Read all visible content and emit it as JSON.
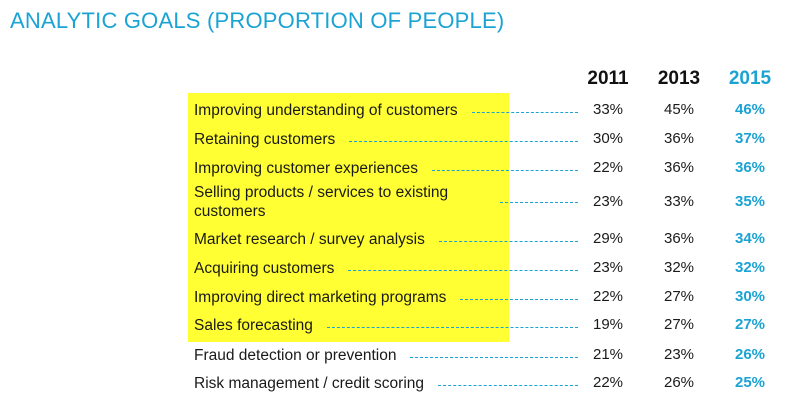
{
  "title": "ANALYTIC GOALS (PROPORTION OF PEOPLE)",
  "colors": {
    "accent": "#1ba3d3",
    "highlight": "#ffff33",
    "text": "#1a1a1a"
  },
  "chart_data": {
    "type": "table",
    "title": "ANALYTIC GOALS (PROPORTION OF PEOPLE)",
    "columns": [
      "2011",
      "2013",
      "2015"
    ],
    "highlighted_column": "2015",
    "rows": [
      {
        "label": "Improving understanding of customers",
        "values": [
          "33%",
          "45%",
          "46%"
        ],
        "highlighted": true
      },
      {
        "label": "Retaining customers",
        "values": [
          "30%",
          "36%",
          "37%"
        ],
        "highlighted": true
      },
      {
        "label": "Improving customer experiences",
        "values": [
          "22%",
          "36%",
          "36%"
        ],
        "highlighted": true
      },
      {
        "label": "Selling products / services to existing customers",
        "values": [
          "23%",
          "33%",
          "35%"
        ],
        "highlighted": true
      },
      {
        "label": "Market research / survey analysis",
        "values": [
          "29%",
          "36%",
          "34%"
        ],
        "highlighted": true
      },
      {
        "label": "Acquiring customers",
        "values": [
          "23%",
          "32%",
          "32%"
        ],
        "highlighted": true
      },
      {
        "label": "Improving direct marketing programs",
        "values": [
          "22%",
          "27%",
          "30%"
        ],
        "highlighted": true
      },
      {
        "label": "Sales forecasting",
        "values": [
          "19%",
          "27%",
          "27%"
        ],
        "highlighted": true
      },
      {
        "label": "Fraud detection or prevention",
        "values": [
          "21%",
          "23%",
          "26%"
        ],
        "highlighted": false
      },
      {
        "label": "Risk management / credit scoring",
        "values": [
          "22%",
          "26%",
          "25%"
        ],
        "highlighted": false
      }
    ]
  }
}
